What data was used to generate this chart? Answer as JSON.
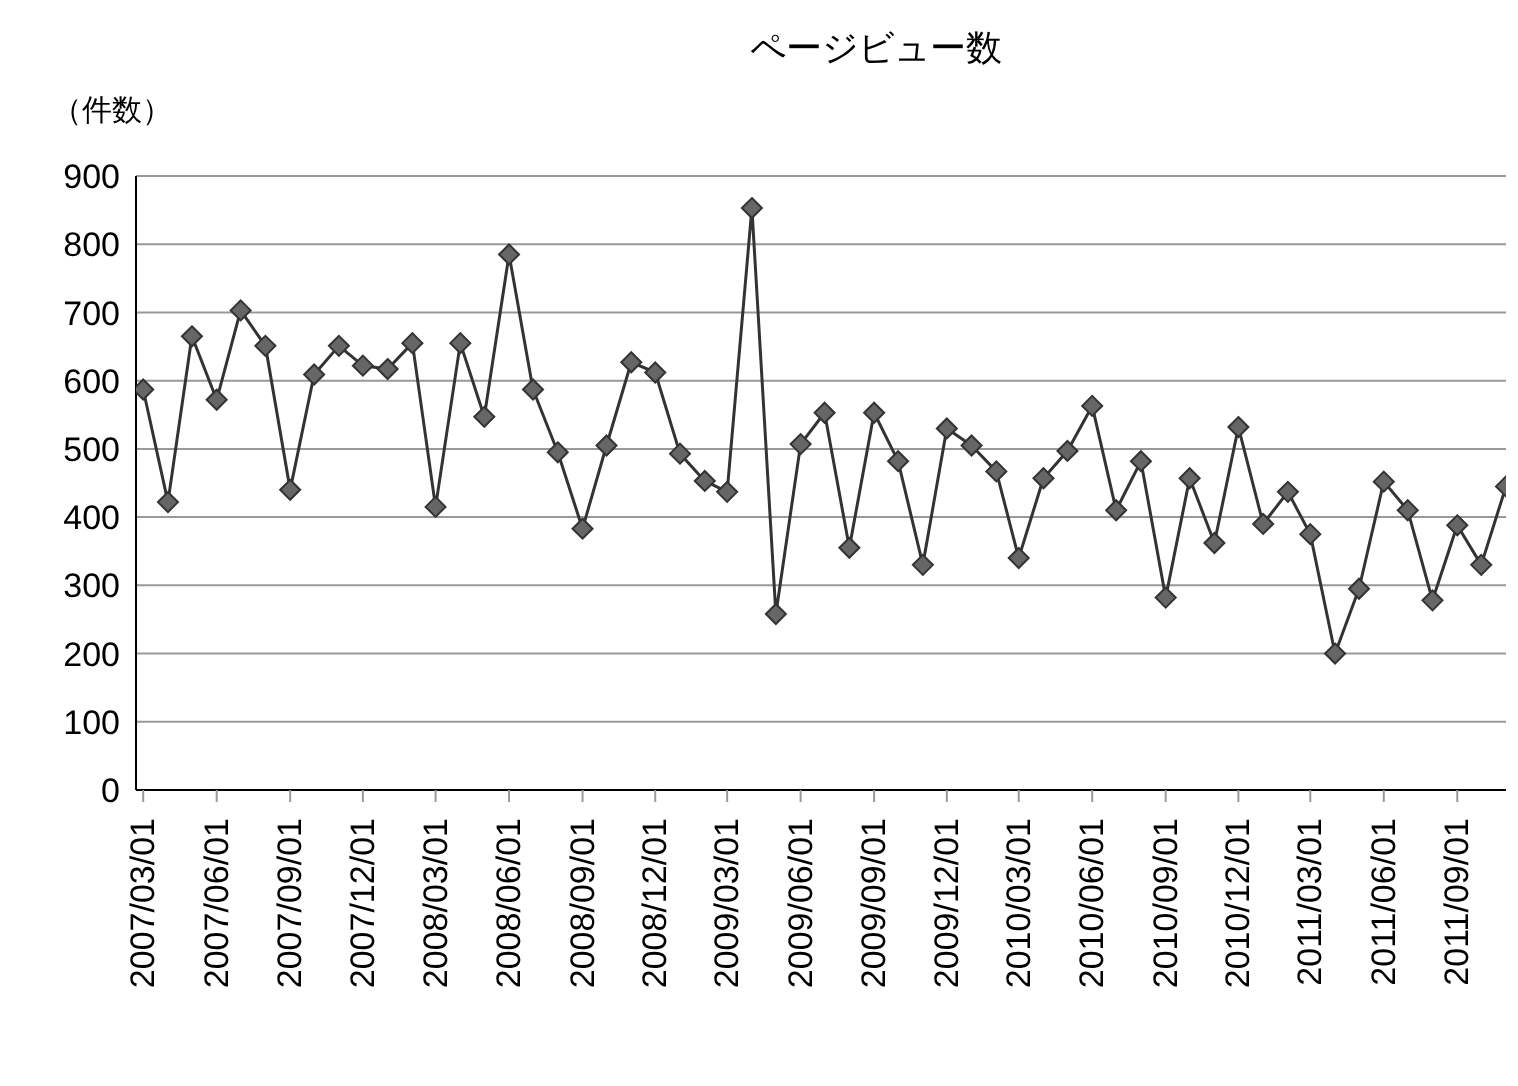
{
  "chart_data": {
    "type": "line",
    "title": "ページビュー数",
    "ylabel": "（件数）",
    "x": [
      "2007-03",
      "2007-04",
      "2007-05",
      "2007-06",
      "2007-07",
      "2007-08",
      "2007-09",
      "2007-10",
      "2007-11",
      "2007-12",
      "2008-01",
      "2008-02",
      "2008-03",
      "2008-04",
      "2008-05",
      "2008-06",
      "2008-07",
      "2008-08",
      "2008-09",
      "2008-10",
      "2008-11",
      "2008-12",
      "2009-01",
      "2009-02",
      "2009-03",
      "2009-04",
      "2009-05",
      "2009-06",
      "2009-07",
      "2009-08",
      "2009-09",
      "2009-10",
      "2009-11",
      "2009-12",
      "2010-01",
      "2010-02",
      "2010-03",
      "2010-04",
      "2010-05",
      "2010-06",
      "2010-07",
      "2010-08",
      "2010-09",
      "2010-10",
      "2010-11",
      "2010-12",
      "2011-01",
      "2011-02",
      "2011-03",
      "2011-04",
      "2011-05",
      "2011-06",
      "2011-07",
      "2011-08",
      "2011-09",
      "2011-10",
      "2011-11"
    ],
    "series": [
      {
        "color": "#333333",
        "values": [
          587,
          422,
          665,
          572,
          703,
          651,
          440,
          609,
          651,
          622,
          617,
          655,
          415,
          655,
          547,
          785,
          587,
          495,
          383,
          505,
          627,
          612,
          493,
          453,
          437,
          853,
          258,
          507,
          553,
          355,
          553,
          482,
          330,
          530,
          505,
          467,
          340,
          457,
          497,
          563,
          410,
          482,
          282,
          457,
          362,
          532,
          390,
          437,
          375,
          200,
          295,
          452,
          410,
          278,
          388,
          330,
          445
        ]
      }
    ],
    "xlim": [
      "2007-02-20",
      "2011-11-01"
    ],
    "xticks": [
      {
        "value": "2007-03-01",
        "label": "2007/03/01"
      },
      {
        "value": "2007-06-01",
        "label": "2007/06/01"
      },
      {
        "value": "2007-09-01",
        "label": "2007/09/01"
      },
      {
        "value": "2007-12-01",
        "label": "2007/12/01"
      },
      {
        "value": "2008-03-01",
        "label": "2008/03/01"
      },
      {
        "value": "2008-06-01",
        "label": "2008/06/01"
      },
      {
        "value": "2008-09-01",
        "label": "2008/09/01"
      },
      {
        "value": "2008-12-01",
        "label": "2008/12/01"
      },
      {
        "value": "2009-03-01",
        "label": "2009/03/01"
      },
      {
        "value": "2009-06-01",
        "label": "2009/06/01"
      },
      {
        "value": "2009-09-01",
        "label": "2009/09/01"
      },
      {
        "value": "2009-12-01",
        "label": "2009/12/01"
      },
      {
        "value": "2010-03-01",
        "label": "2010/03/01"
      },
      {
        "value": "2010-06-01",
        "label": "2010/06/01"
      },
      {
        "value": "2010-09-01",
        "label": "2010/09/01"
      },
      {
        "value": "2010-12-01",
        "label": "2010/12/01"
      },
      {
        "value": "2011-03-01",
        "label": "2011/03/01"
      },
      {
        "value": "2011-06-01",
        "label": "2011/06/01"
      },
      {
        "value": "2011-09-01",
        "label": "2011/09/01"
      }
    ],
    "ylim": [
      0,
      900
    ],
    "yticks": [
      0,
      100,
      200,
      300,
      400,
      500,
      600,
      700,
      800,
      900
    ],
    "grid": "y",
    "legend": false,
    "marker": "diamond",
    "line_style": "solid"
  }
}
